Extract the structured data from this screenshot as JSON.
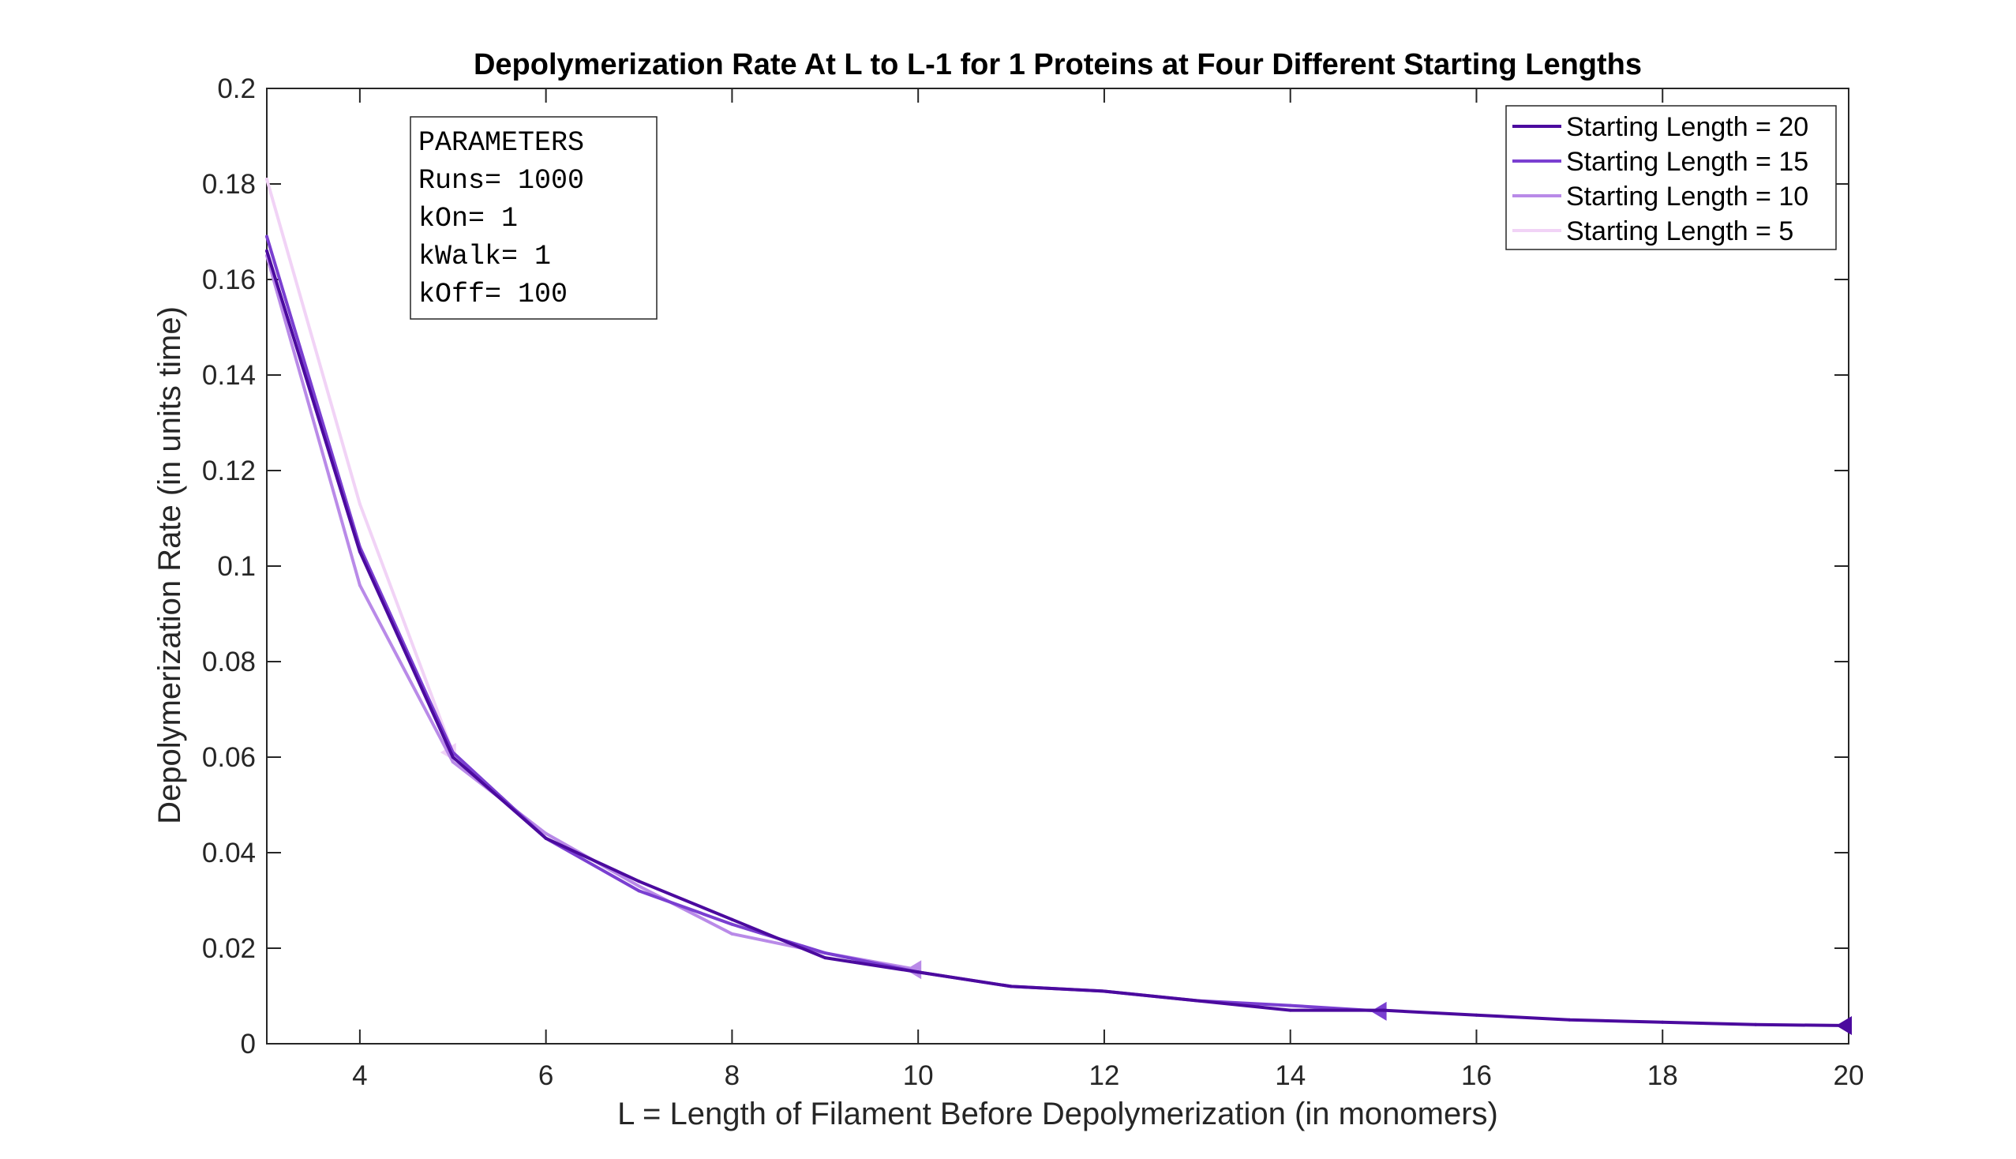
{
  "chart_data": {
    "type": "line",
    "title": "Depolymerization Rate At L to L-1 for 1 Proteins at Four Different Starting Lengths",
    "xlabel": "L = Length of Filament Before Depolymerization (in monomers)",
    "ylabel": "Depolymerization Rate (in units time)",
    "xlim": [
      3,
      20
    ],
    "ylim": [
      0,
      0.2
    ],
    "xticks": [
      4,
      6,
      8,
      10,
      12,
      14,
      16,
      18,
      20
    ],
    "yticks": [
      0,
      0.02,
      0.04,
      0.06,
      0.08,
      0.1,
      0.12,
      0.14,
      0.16,
      0.18,
      0.2
    ],
    "ytick_labels": [
      "0",
      "0.02",
      "0.04",
      "0.06",
      "0.08",
      "0.1",
      "0.12",
      "0.14",
      "0.16",
      "0.18",
      "0.2"
    ],
    "grid": false,
    "legend_position": "top-right",
    "series": [
      {
        "name": "Starting Length = 20",
        "color": "#4b0a9e",
        "x": [
          3,
          4,
          5,
          6,
          7,
          8,
          9,
          10,
          11,
          12,
          13,
          14,
          15,
          16,
          17,
          18,
          19,
          20
        ],
        "values": [
          0.166,
          0.103,
          0.06,
          0.043,
          0.034,
          0.026,
          0.018,
          0.015,
          0.012,
          0.011,
          0.009,
          0.007,
          0.007,
          0.006,
          0.005,
          0.0045,
          0.004,
          0.0038
        ]
      },
      {
        "name": "Starting Length = 15",
        "color": "#7a3fd1",
        "x": [
          3,
          4,
          5,
          6,
          7,
          8,
          9,
          10,
          11,
          12,
          13,
          14,
          15
        ],
        "values": [
          0.169,
          0.104,
          0.061,
          0.043,
          0.032,
          0.025,
          0.019,
          0.015,
          0.012,
          0.011,
          0.009,
          0.008,
          0.0068
        ]
      },
      {
        "name": "Starting Length = 10",
        "color": "#b98ae8",
        "x": [
          3,
          4,
          5,
          6,
          7,
          8,
          9,
          10
        ],
        "values": [
          0.165,
          0.096,
          0.059,
          0.044,
          0.033,
          0.023,
          0.019,
          0.0155
        ]
      },
      {
        "name": "Starting Length = 5",
        "color": "#f1d3f6",
        "x": [
          3,
          4,
          5
        ],
        "values": [
          0.181,
          0.113,
          0.061
        ]
      }
    ],
    "annotation": {
      "lines": [
        "PARAMETERS",
        "Runs= 1000",
        "kOn= 1",
        "kWalk= 1",
        "kOff= 100"
      ]
    }
  }
}
